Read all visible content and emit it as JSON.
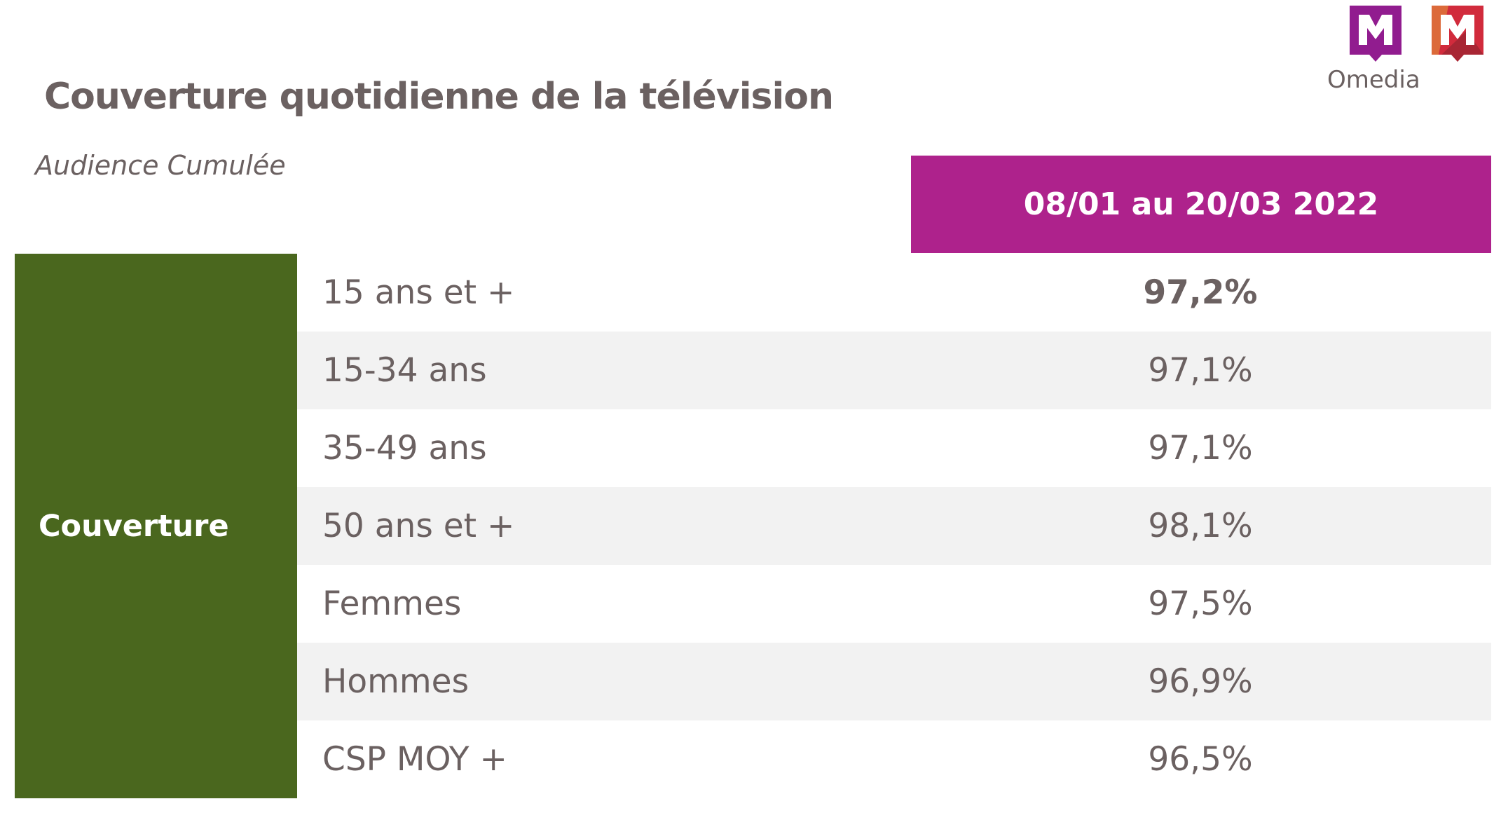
{
  "title": "Couverture quotidienne de la télévision",
  "subtitle": "Audience Cumulée",
  "logo": {
    "text": "Omedia",
    "colors": {
      "purple": "#911c8f",
      "red": "#d12b3c",
      "orange": "#dc6a3a"
    }
  },
  "table": {
    "period_header": "08/01 au 20/03 2022",
    "group_label": "Couverture",
    "rows": [
      {
        "label": "15 ans et +",
        "value": "97,2%"
      },
      {
        "label": "15-34 ans",
        "value": "97,1%"
      },
      {
        "label": "35-49 ans",
        "value": "97,1%"
      },
      {
        "label": "50 ans et +",
        "value": "98,1%"
      },
      {
        "label": "Femmes",
        "value": "97,5%"
      },
      {
        "label": "Hommes",
        "value": "96,9%"
      },
      {
        "label": "CSP MOY +",
        "value": "96,5%"
      }
    ]
  },
  "colors": {
    "header": "#ae228c",
    "group": "#4a671e",
    "text": "#6b6161",
    "alt_row": "#f2f2f2"
  }
}
